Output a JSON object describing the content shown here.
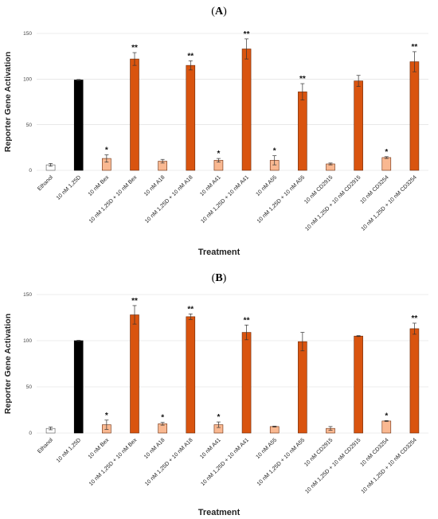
{
  "categories": [
    "Ethanol",
    "10 nM 1,25D",
    "10 nM Bex",
    "10 nM 1,25D + 10 nM Bex",
    "10 nM A18",
    "10 nM 1,25D + 10 nM A18",
    "10 nM A41",
    "10 nM 1,25D + 10 nM A41",
    "10 nM A55",
    "10 nM 1,25D + 10 nM A55",
    "10 nM CD2915",
    "10 nM 1,25D + 10 nM CD2915",
    "10 nM CD3254",
    "10 nM 1,25D + 10 nM CD3254"
  ],
  "colors": {
    "vehicle": "#ffffff",
    "control": "#000000",
    "single": "#f9b891",
    "combo": "#d9540f",
    "outline": "#6b2a0a"
  },
  "bar_groups": [
    "vehicle",
    "control",
    "single",
    "combo",
    "single",
    "combo",
    "single",
    "combo",
    "single",
    "combo",
    "single",
    "combo",
    "single",
    "combo"
  ],
  "chart_data": [
    {
      "type": "bar",
      "panel": "A",
      "title": "(A)",
      "title_letter": "A",
      "xlabel": "Treatment",
      "ylabel": "Reporter Gene Activation",
      "ylim": [
        0,
        150
      ],
      "yticks": [
        "0",
        "50",
        "100",
        "150"
      ],
      "grid": true,
      "values": [
        6,
        99,
        13,
        122,
        10,
        115,
        11,
        133,
        11,
        86,
        7,
        98,
        14,
        119
      ],
      "errors": [
        1.5,
        0.5,
        4,
        7,
        2,
        5,
        2,
        11,
        5,
        9,
        1,
        6,
        1,
        11
      ],
      "significance": [
        "",
        "",
        "*",
        "**",
        "",
        "**",
        "*",
        "**",
        "*",
        "**",
        "",
        "",
        "*",
        "**"
      ]
    },
    {
      "type": "bar",
      "panel": "B",
      "title": "(B)",
      "title_letter": "B",
      "xlabel": "Treatment",
      "ylabel": "Reporter Gene Activation",
      "ylim": [
        0,
        150
      ],
      "yticks": [
        "0",
        "50",
        "100",
        "150"
      ],
      "grid": true,
      "values": [
        5,
        100,
        9,
        128,
        10,
        126,
        9,
        109,
        7,
        99,
        5,
        105,
        13,
        113
      ],
      "errors": [
        1.5,
        0.5,
        5,
        10,
        1.5,
        3,
        3,
        8,
        0.5,
        10,
        2,
        0.5,
        0.5,
        6
      ],
      "significance": [
        "",
        "",
        "*",
        "**",
        "*",
        "**",
        "*",
        "**",
        "",
        "",
        "",
        "",
        "*",
        "**"
      ]
    }
  ]
}
